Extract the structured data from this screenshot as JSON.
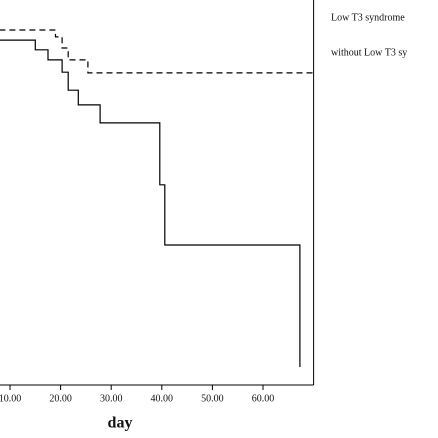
{
  "chart_data": {
    "type": "line",
    "step": true,
    "xlabel": "day",
    "xlim": [
      0,
      70
    ],
    "ylim": [
      0,
      1
    ],
    "xticks": [
      {
        "value": 10,
        "label": "10.00"
      },
      {
        "value": 20,
        "label": "20.00"
      },
      {
        "value": 30,
        "label": "30.00"
      },
      {
        "value": 40,
        "label": "40.00"
      },
      {
        "value": 50,
        "label": "50.00"
      },
      {
        "value": 60,
        "label": "60.00"
      }
    ],
    "series": [
      {
        "name": "Low T3 syndrome",
        "color": "#000000",
        "dash": false,
        "x": [
          0,
          15,
          17.5,
          20.3,
          21.5,
          23.5,
          27.8,
          39.6,
          40.6,
          67.3
        ],
        "values": [
          0.958,
          0.931,
          0.903,
          0.869,
          0.819,
          0.778,
          0.728,
          0.556,
          0.389,
          0.05
        ]
      },
      {
        "name": "without Low T3 sy",
        "color": "#000000",
        "dash": true,
        "x": [
          0,
          19,
          20.3,
          21.5,
          25.4,
          70
        ],
        "values": [
          0.986,
          0.967,
          0.936,
          0.903,
          0.867,
          0.867
        ]
      }
    ]
  }
}
